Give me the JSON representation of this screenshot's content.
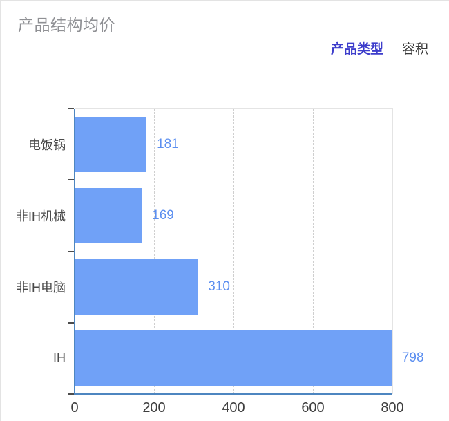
{
  "header": {
    "title": "产品结构均价",
    "tabs": [
      {
        "label": "产品类型",
        "active": true
      },
      {
        "label": "容积",
        "active": false
      }
    ]
  },
  "colors": {
    "bar": "#70a1f7",
    "value_label": "#5c8ff0",
    "axis_line": "#4e86c0",
    "active_tab": "#3d3dcb",
    "title": "#8f9094"
  },
  "chart_data": {
    "type": "bar",
    "orientation": "horizontal",
    "title": "产品结构均价",
    "categories": [
      "电饭锅",
      "非IH机械",
      "非IH电脑",
      "IH"
    ],
    "values": [
      181,
      169,
      310,
      798
    ],
    "xlabel": "",
    "ylabel": "",
    "xlim": [
      0,
      800
    ],
    "xticks": [
      0,
      200,
      400,
      600,
      800
    ],
    "grid": "vertical-dashed",
    "legend": "none",
    "value_labels": "outside-right"
  }
}
